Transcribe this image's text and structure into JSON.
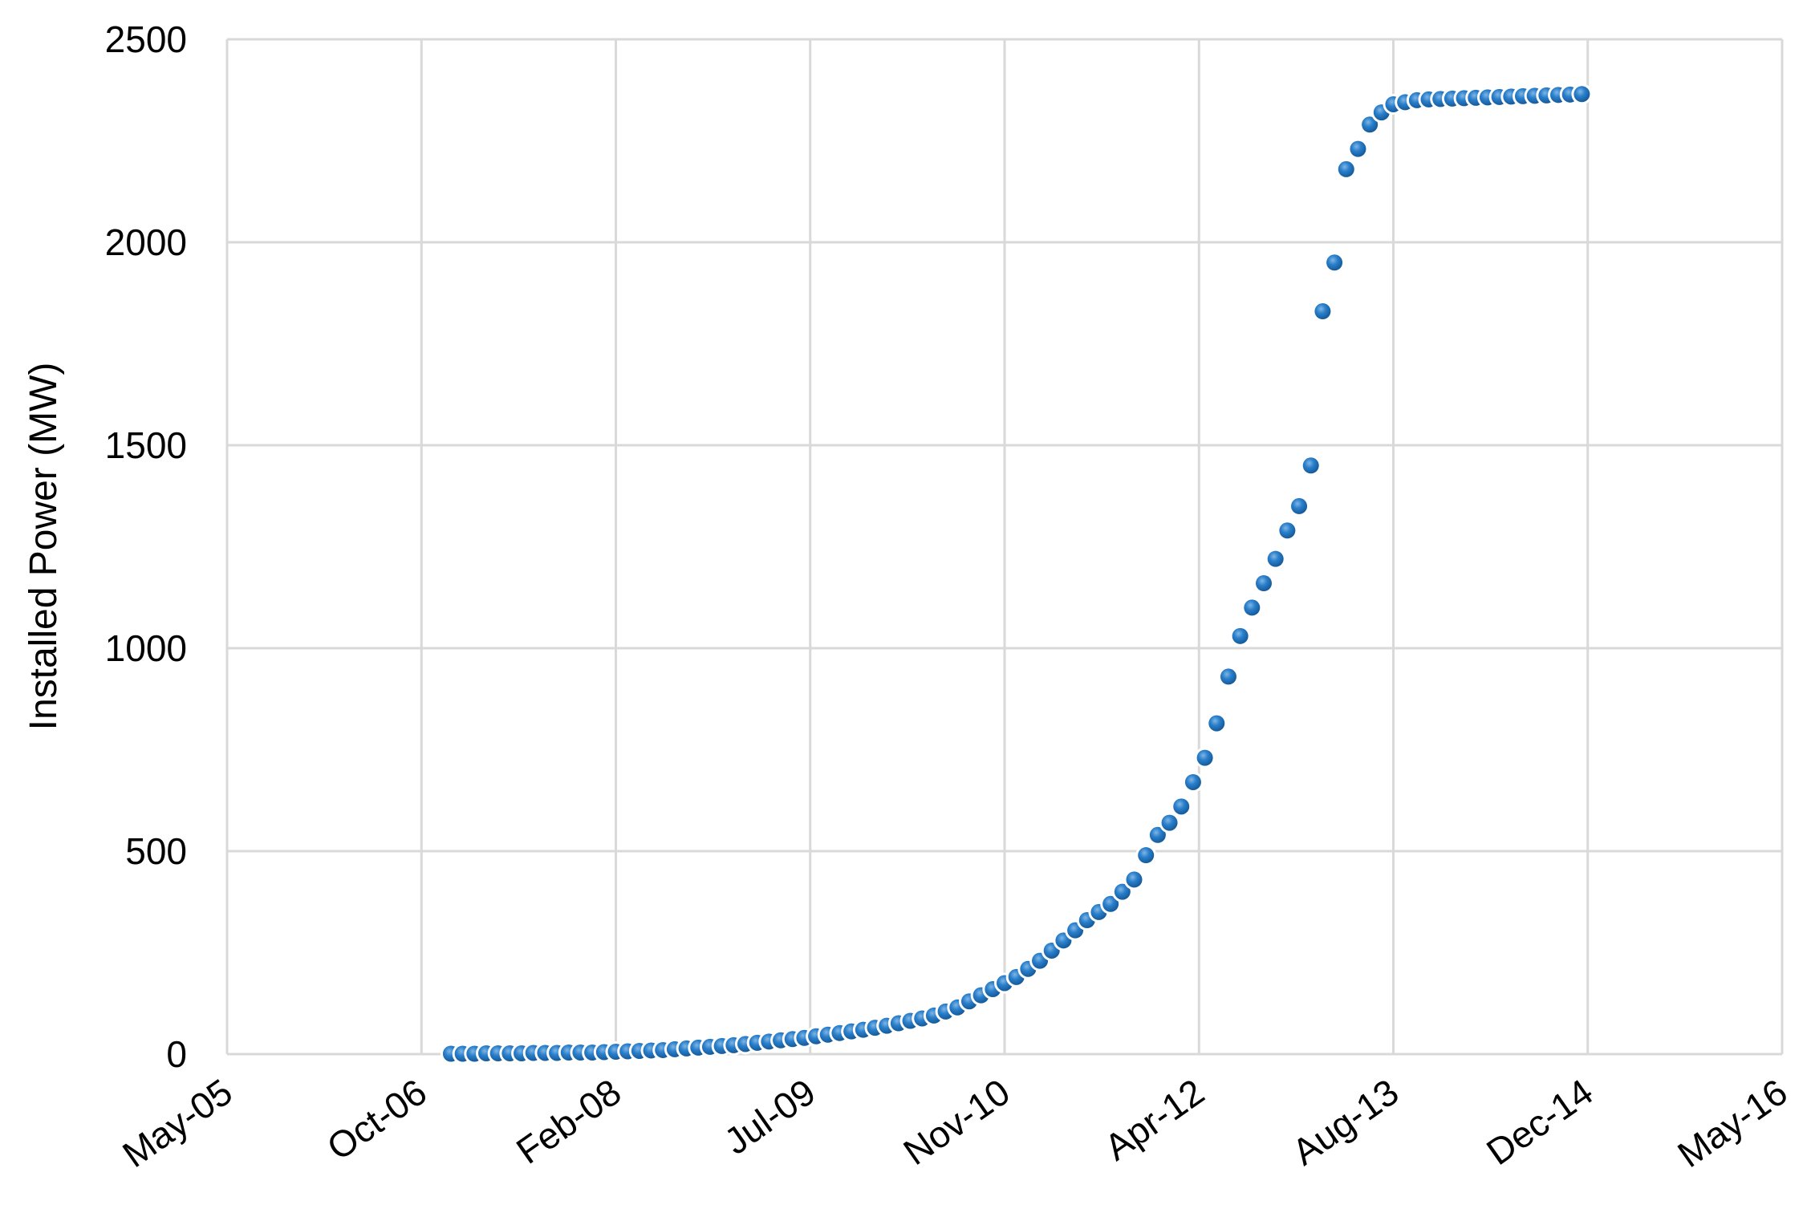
{
  "chart_data": {
    "type": "scatter",
    "xlabel": "",
    "ylabel": "Installed Power (MW)",
    "xlim": [
      "2005-05",
      "2016-05"
    ],
    "ylim": [
      0,
      2500
    ],
    "x_ticks": [
      "May-05",
      "Oct-06",
      "Feb-08",
      "Jul-09",
      "Nov-10",
      "Apr-12",
      "Aug-13",
      "Dec-14",
      "May-16"
    ],
    "y_ticks": [
      "0",
      "500",
      "1000",
      "1500",
      "2000",
      "2500"
    ],
    "grid": true,
    "legend": "none",
    "marker_color": "#1f6fb5",
    "series": [
      {
        "x": [
          "2006-12",
          "2007-01",
          "2007-02",
          "2007-03",
          "2007-04",
          "2007-05",
          "2007-06",
          "2007-07",
          "2007-08",
          "2007-09",
          "2007-10",
          "2007-11",
          "2007-12",
          "2008-01",
          "2008-02",
          "2008-03",
          "2008-04",
          "2008-05",
          "2008-06",
          "2008-07",
          "2008-08",
          "2008-09",
          "2008-10",
          "2008-11",
          "2008-12",
          "2009-01",
          "2009-02",
          "2009-03",
          "2009-04",
          "2009-05",
          "2009-06",
          "2009-07",
          "2009-08",
          "2009-09",
          "2009-10",
          "2009-11",
          "2009-12",
          "2010-01",
          "2010-02",
          "2010-03",
          "2010-04",
          "2010-05",
          "2010-06",
          "2010-07",
          "2010-08",
          "2010-09",
          "2010-10",
          "2010-11",
          "2010-12",
          "2011-01",
          "2011-02",
          "2011-03",
          "2011-04",
          "2011-05",
          "2011-06",
          "2011-07",
          "2011-08",
          "2011-09",
          "2011-10",
          "2011-11",
          "2011-12",
          "2012-01",
          "2012-02",
          "2012-03",
          "2012-04",
          "2012-05",
          "2012-06",
          "2012-07",
          "2012-08",
          "2012-09",
          "2012-10",
          "2012-11",
          "2012-12",
          "2013-01",
          "2013-02",
          "2013-03",
          "2013-04",
          "2013-05",
          "2013-06",
          "2013-07",
          "2013-08",
          "2013-09",
          "2013-10",
          "2013-11",
          "2013-12",
          "2014-01",
          "2014-02",
          "2014-03",
          "2014-04",
          "2014-05",
          "2014-06",
          "2014-07",
          "2014-08",
          "2014-09",
          "2014-10",
          "2014-11",
          "2014-12"
        ],
        "y": [
          1,
          1,
          1,
          2,
          2,
          2,
          2,
          3,
          3,
          3,
          4,
          4,
          4,
          5,
          6,
          7,
          8,
          9,
          10,
          12,
          14,
          16,
          18,
          20,
          22,
          25,
          28,
          31,
          34,
          37,
          40,
          44,
          48,
          52,
          56,
          60,
          65,
          70,
          76,
          82,
          88,
          95,
          105,
          115,
          130,
          145,
          160,
          175,
          190,
          210,
          230,
          255,
          280,
          305,
          330,
          350,
          370,
          400,
          430,
          490,
          540,
          570,
          610,
          670,
          730,
          815,
          930,
          1030,
          1100,
          1160,
          1220,
          1290,
          1350,
          1450,
          1830,
          1950,
          2180,
          2230,
          2290,
          2320,
          2340,
          2345,
          2350,
          2352,
          2353,
          2354,
          2355,
          2356,
          2357,
          2358,
          2359,
          2360,
          2361,
          2362,
          2363,
          2364,
          2365
        ]
      }
    ]
  }
}
